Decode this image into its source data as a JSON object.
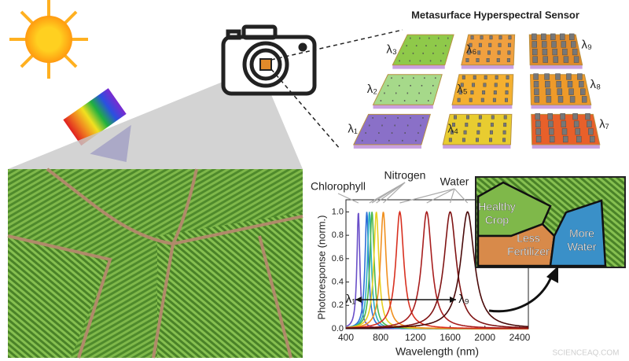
{
  "title": "Metasurface Hyperspectral Sensor",
  "tiles": [
    {
      "label": "λ₃",
      "color": "#8fc94a"
    },
    {
      "label": "λ₆",
      "color": "#f0a040"
    },
    {
      "label": "λ₉",
      "color": "#e08a2a"
    },
    {
      "label": "λ₂",
      "color": "#a6d98a"
    },
    {
      "label": "λ₅",
      "color": "#f4b030"
    },
    {
      "label": "λ₈",
      "color": "#ee9a2a"
    },
    {
      "label": "λ₁",
      "color": "#8a70c8"
    },
    {
      "label": "λ₄",
      "color": "#e8cc30"
    },
    {
      "label": "λ₇",
      "color": "#e8602a"
    }
  ],
  "chart_data": {
    "type": "line",
    "xlabel": "Wavelength (nm)",
    "ylabel": "Photoresponse (norm.)",
    "xlim": [
      400,
      2500
    ],
    "xticks": [
      400,
      800,
      1200,
      1600,
      2000,
      2400
    ],
    "ylim": [
      0,
      1.05
    ],
    "yticks": [
      {
        "value": 0,
        "label": "0.0"
      },
      0.2,
      0.4,
      0.6,
      0.8,
      {
        "value": 1,
        "label": "1.0"
      }
    ],
    "annotations": [
      "Chlorophyll",
      "Nitrogen",
      "Water"
    ],
    "range_labels": [
      "λ₁",
      "λ₉"
    ],
    "series": [
      {
        "color": "#6a4fc8",
        "peak": 543,
        "width": 40
      },
      {
        "color": "#2f6fd8",
        "peak": 640,
        "width": 50
      },
      {
        "color": "#2bb0c0",
        "peak": 670,
        "width": 55
      },
      {
        "color": "#4cb84c",
        "peak": 700,
        "width": 60
      },
      {
        "color": "#e8d020",
        "peak": 750,
        "width": 70
      },
      {
        "color": "#f09020",
        "peak": 830,
        "width": 80
      },
      {
        "color": "#d83020",
        "peak": 1020,
        "width": 110
      },
      {
        "color": "#a81e1e",
        "peak": 1330,
        "width": 140
      },
      {
        "color": "#801414",
        "peak": 1600,
        "width": 170
      },
      {
        "color": "#4a0a0a",
        "peak": 1800,
        "width": 190
      }
    ]
  },
  "map": {
    "labels": [
      [
        "Healthy",
        "Crop"
      ],
      [
        "Less",
        "Fertilizer"
      ],
      [
        "More",
        "Water"
      ]
    ]
  },
  "watermark": "SCIENCEAQ.COM"
}
